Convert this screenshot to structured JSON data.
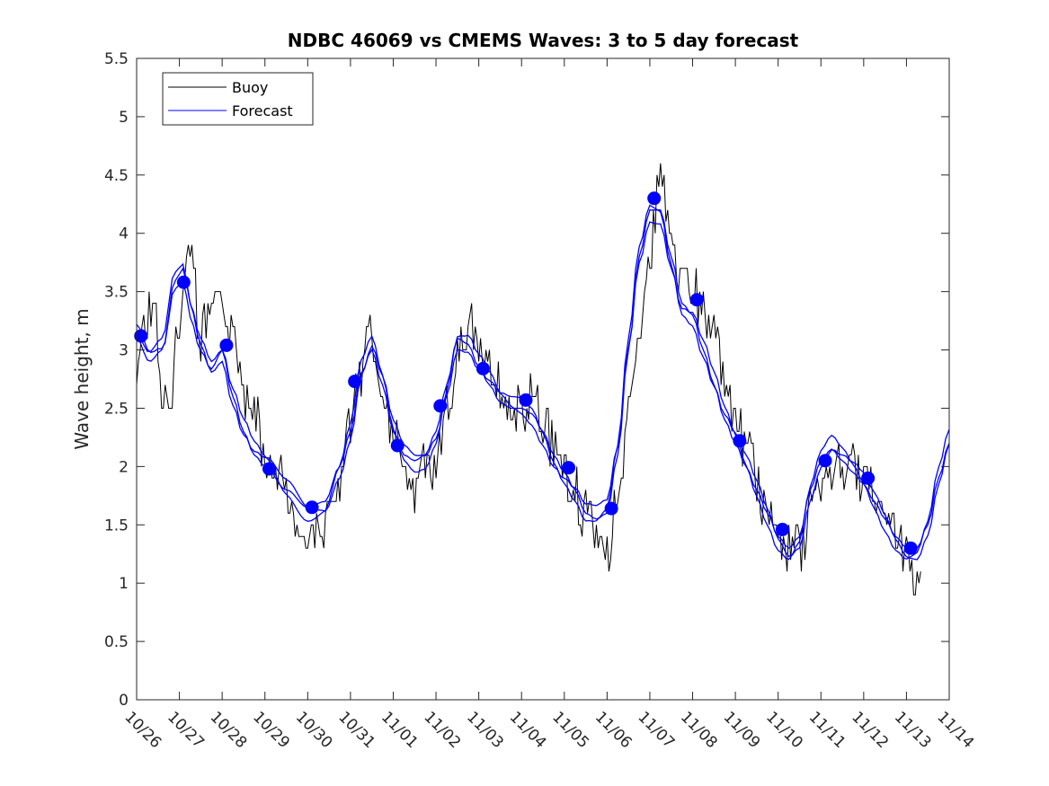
{
  "chart_data": {
    "type": "line",
    "title": "NDBC 46069 vs CMEMS Waves: 3 to 5 day forecast",
    "xlabel": "",
    "ylabel": "Wave height, m",
    "xlim": [
      0,
      19
    ],
    "ylim": [
      0,
      5.5
    ],
    "yticks": [
      0,
      0.5,
      1,
      1.5,
      2,
      2.5,
      3,
      3.5,
      4,
      4.5,
      5,
      5.5
    ],
    "ytick_labels": [
      "0",
      "0.5",
      "1",
      "1.5",
      "2",
      "2.5",
      "3",
      "3.5",
      "4",
      "4.5",
      "5",
      "5.5"
    ],
    "xtick_labels": [
      "10/26",
      "10/27",
      "10/28",
      "10/29",
      "10/30",
      "10/31",
      "11/01",
      "11/02",
      "11/03",
      "11/04",
      "11/05",
      "11/06",
      "11/07",
      "11/08",
      "11/09",
      "11/10",
      "11/11",
      "11/12",
      "11/13",
      "11/14"
    ],
    "legend": {
      "location": "top-left",
      "entries": [
        "Buoy",
        "Forecast"
      ]
    },
    "colors": {
      "buoy": "#000000",
      "forecast": "#0000ff",
      "axis": "#262626"
    },
    "series": [
      {
        "name": "Buoy",
        "anchors": [
          [
            0.0,
            2.8
          ],
          [
            0.2,
            3.2
          ],
          [
            0.4,
            3.4
          ],
          [
            0.6,
            2.6
          ],
          [
            0.8,
            2.6
          ],
          [
            1.0,
            3.3
          ],
          [
            1.1,
            3.7
          ],
          [
            1.25,
            3.9
          ],
          [
            1.5,
            3.1
          ],
          [
            1.75,
            3.4
          ],
          [
            2.0,
            3.4
          ],
          [
            2.2,
            3.1
          ],
          [
            2.5,
            2.6
          ],
          [
            2.8,
            2.4
          ],
          [
            3.0,
            2.0
          ],
          [
            3.25,
            2.0
          ],
          [
            3.5,
            1.8
          ],
          [
            3.75,
            1.6
          ],
          [
            4.0,
            1.5
          ],
          [
            4.25,
            1.5
          ],
          [
            4.5,
            1.5
          ],
          [
            4.75,
            1.9
          ],
          [
            5.0,
            2.4
          ],
          [
            5.25,
            2.8
          ],
          [
            5.4,
            3.2
          ],
          [
            5.6,
            2.8
          ],
          [
            5.8,
            2.4
          ],
          [
            6.0,
            2.3
          ],
          [
            6.25,
            2.0
          ],
          [
            6.5,
            1.8
          ],
          [
            6.75,
            2.1
          ],
          [
            7.0,
            2.0
          ],
          [
            7.25,
            2.5
          ],
          [
            7.5,
            2.9
          ],
          [
            7.75,
            3.2
          ],
          [
            8.0,
            3.1
          ],
          [
            8.25,
            2.9
          ],
          [
            8.5,
            2.7
          ],
          [
            8.75,
            2.6
          ],
          [
            9.0,
            2.5
          ],
          [
            9.25,
            2.6
          ],
          [
            9.5,
            2.4
          ],
          [
            9.75,
            2.2
          ],
          [
            10.0,
            2.0
          ],
          [
            10.25,
            1.8
          ],
          [
            10.5,
            1.6
          ],
          [
            10.75,
            1.5
          ],
          [
            11.0,
            1.3
          ],
          [
            11.25,
            1.7
          ],
          [
            11.5,
            2.5
          ],
          [
            11.75,
            3.0
          ],
          [
            12.0,
            3.8
          ],
          [
            12.25,
            4.5
          ],
          [
            12.5,
            4.0
          ],
          [
            12.75,
            3.6
          ],
          [
            13.0,
            3.5
          ],
          [
            13.25,
            3.3
          ],
          [
            13.5,
            3.2
          ],
          [
            13.75,
            2.8
          ],
          [
            14.0,
            2.3
          ],
          [
            14.25,
            2.2
          ],
          [
            14.5,
            1.9
          ],
          [
            14.75,
            1.6
          ],
          [
            15.0,
            1.4
          ],
          [
            15.25,
            1.3
          ],
          [
            15.5,
            1.3
          ],
          [
            15.75,
            1.6
          ],
          [
            16.0,
            1.9
          ],
          [
            16.25,
            2.0
          ],
          [
            16.5,
            2.0
          ],
          [
            16.75,
            2.0
          ],
          [
            17.0,
            1.9
          ],
          [
            17.25,
            1.7
          ],
          [
            17.5,
            1.6
          ],
          [
            17.75,
            1.4
          ],
          [
            18.0,
            1.3
          ],
          [
            18.2,
            1.1
          ],
          [
            18.35,
            1.0
          ]
        ]
      },
      {
        "name": "Forecast",
        "anchors": [
          [
            0.0,
            3.1
          ],
          [
            0.3,
            2.9
          ],
          [
            0.6,
            3.0
          ],
          [
            0.9,
            3.6
          ],
          [
            1.1,
            3.7
          ],
          [
            1.25,
            3.4
          ],
          [
            1.5,
            3.1
          ],
          [
            1.75,
            2.9
          ],
          [
            2.0,
            3.0
          ],
          [
            2.25,
            2.6
          ],
          [
            2.5,
            2.3
          ],
          [
            2.75,
            2.1
          ],
          [
            3.0,
            2.0
          ],
          [
            3.5,
            1.8
          ],
          [
            4.0,
            1.65
          ],
          [
            4.4,
            1.7
          ],
          [
            4.75,
            2.0
          ],
          [
            5.0,
            2.3
          ],
          [
            5.25,
            2.8
          ],
          [
            5.5,
            3.0
          ],
          [
            5.75,
            2.7
          ],
          [
            6.0,
            2.3
          ],
          [
            6.25,
            2.1
          ],
          [
            6.5,
            2.05
          ],
          [
            6.75,
            2.1
          ],
          [
            7.0,
            2.3
          ],
          [
            7.25,
            2.7
          ],
          [
            7.5,
            3.1
          ],
          [
            7.75,
            3.05
          ],
          [
            8.0,
            2.85
          ],
          [
            8.25,
            2.7
          ],
          [
            8.5,
            2.55
          ],
          [
            8.75,
            2.5
          ],
          [
            9.0,
            2.5
          ],
          [
            9.25,
            2.45
          ],
          [
            9.5,
            2.3
          ],
          [
            9.75,
            2.1
          ],
          [
            10.0,
            1.95
          ],
          [
            10.25,
            1.8
          ],
          [
            10.5,
            1.6
          ],
          [
            10.75,
            1.55
          ],
          [
            11.0,
            1.6
          ],
          [
            11.25,
            2.1
          ],
          [
            11.5,
            3.0
          ],
          [
            11.75,
            3.8
          ],
          [
            12.0,
            4.2
          ],
          [
            12.25,
            4.2
          ],
          [
            12.5,
            3.8
          ],
          [
            12.75,
            3.4
          ],
          [
            13.0,
            3.3
          ],
          [
            13.25,
            3.0
          ],
          [
            13.5,
            2.7
          ],
          [
            13.75,
            2.4
          ],
          [
            14.0,
            2.2
          ],
          [
            14.25,
            2.0
          ],
          [
            14.5,
            1.8
          ],
          [
            14.75,
            1.6
          ],
          [
            15.0,
            1.4
          ],
          [
            15.25,
            1.3
          ],
          [
            15.5,
            1.4
          ],
          [
            15.75,
            1.8
          ],
          [
            16.0,
            2.05
          ],
          [
            16.25,
            2.15
          ],
          [
            16.5,
            2.05
          ],
          [
            16.75,
            1.95
          ],
          [
            17.0,
            1.85
          ],
          [
            17.25,
            1.7
          ],
          [
            17.5,
            1.55
          ],
          [
            17.75,
            1.4
          ],
          [
            18.0,
            1.3
          ],
          [
            18.25,
            1.3
          ],
          [
            18.5,
            1.5
          ],
          [
            18.75,
            1.9
          ],
          [
            19.0,
            2.2
          ]
        ]
      }
    ],
    "markers": {
      "name": "Forecast analysis points",
      "x": [
        0.1,
        1.1,
        2.1,
        3.1,
        4.1,
        5.1,
        6.1,
        7.1,
        8.1,
        9.1,
        10.1,
        11.1,
        12.1,
        13.1,
        14.1,
        15.1,
        16.1,
        17.1,
        18.1
      ],
      "y": [
        3.12,
        3.58,
        3.04,
        1.98,
        1.65,
        2.73,
        2.18,
        2.52,
        2.84,
        2.57,
        1.99,
        1.64,
        4.3,
        3.43,
        2.22,
        1.46,
        2.05,
        1.9,
        1.3
      ]
    }
  }
}
